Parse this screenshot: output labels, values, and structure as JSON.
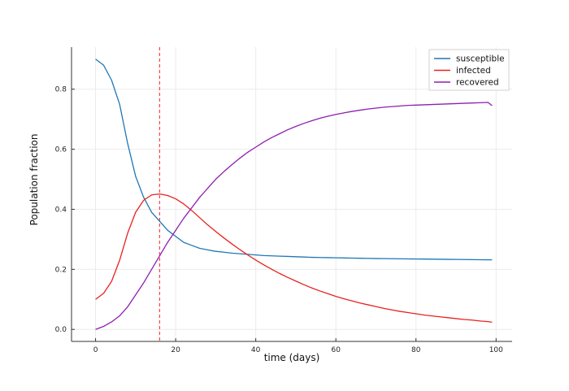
{
  "chart_data": {
    "type": "line",
    "xlabel": "time (days)",
    "ylabel": "Population fraction",
    "xlim": [
      -6,
      104
    ],
    "ylim": [
      -0.04,
      0.94
    ],
    "xticks": [
      0,
      20,
      40,
      60,
      80,
      100
    ],
    "yticks": [
      0.0,
      0.2,
      0.4,
      0.6,
      0.8
    ],
    "xtick_labels": [
      "0",
      "20",
      "40",
      "60",
      "80",
      "100"
    ],
    "ytick_labels": [
      "0.0",
      "0.2",
      "0.4",
      "0.6",
      "0.8"
    ],
    "grid": true,
    "legend_position": "top-right",
    "x": [
      0,
      2,
      4,
      6,
      8,
      10,
      12,
      14,
      16,
      18,
      20,
      22,
      24,
      26,
      28,
      30,
      32,
      34,
      36,
      38,
      40,
      42,
      44,
      46,
      48,
      50,
      52,
      54,
      56,
      58,
      60,
      62,
      64,
      66,
      68,
      70,
      72,
      74,
      76,
      78,
      80,
      82,
      84,
      86,
      88,
      90,
      92,
      94,
      96,
      98,
      99
    ],
    "series": [
      {
        "name": "susceptible",
        "color": "#1f77b4",
        "values": [
          0.9,
          0.88,
          0.83,
          0.75,
          0.62,
          0.51,
          0.44,
          0.39,
          0.36,
          0.33,
          0.31,
          0.29,
          0.28,
          0.27,
          0.265,
          0.26,
          0.257,
          0.254,
          0.252,
          0.25,
          0.248,
          0.246,
          0.245,
          0.244,
          0.243,
          0.242,
          0.241,
          0.24,
          0.2395,
          0.239,
          0.2385,
          0.238,
          0.2375,
          0.237,
          0.2365,
          0.236,
          0.2357,
          0.2354,
          0.2351,
          0.2348,
          0.2345,
          0.2342,
          0.2339,
          0.2336,
          0.2333,
          0.233,
          0.2327,
          0.2324,
          0.2321,
          0.2318,
          0.2317
        ]
      },
      {
        "name": "infected",
        "color": "#e8221e",
        "values": [
          0.1,
          0.12,
          0.16,
          0.23,
          0.32,
          0.39,
          0.43,
          0.448,
          0.451,
          0.446,
          0.435,
          0.418,
          0.396,
          0.372,
          0.348,
          0.326,
          0.305,
          0.285,
          0.266,
          0.248,
          0.231,
          0.215,
          0.2,
          0.186,
          0.173,
          0.161,
          0.149,
          0.138,
          0.128,
          0.119,
          0.11,
          0.102,
          0.095,
          0.088,
          0.082,
          0.076,
          0.07,
          0.065,
          0.06,
          0.056,
          0.052,
          0.048,
          0.045,
          0.042,
          0.039,
          0.036,
          0.033,
          0.031,
          0.028,
          0.026,
          0.024
        ]
      },
      {
        "name": "recovered",
        "color": "#8e1fb0",
        "values": [
          0.0,
          0.01,
          0.025,
          0.045,
          0.075,
          0.115,
          0.155,
          0.2,
          0.245,
          0.29,
          0.33,
          0.37,
          0.405,
          0.44,
          0.47,
          0.5,
          0.525,
          0.548,
          0.57,
          0.59,
          0.607,
          0.624,
          0.639,
          0.652,
          0.665,
          0.676,
          0.686,
          0.695,
          0.703,
          0.71,
          0.716,
          0.721,
          0.726,
          0.73,
          0.734,
          0.737,
          0.74,
          0.742,
          0.744,
          0.746,
          0.747,
          0.748,
          0.749,
          0.75,
          0.751,
          0.752,
          0.753,
          0.754,
          0.755,
          0.756,
          0.745
        ]
      }
    ],
    "vline": {
      "x": 16,
      "color": "#ff4444",
      "style": "dashed"
    }
  }
}
